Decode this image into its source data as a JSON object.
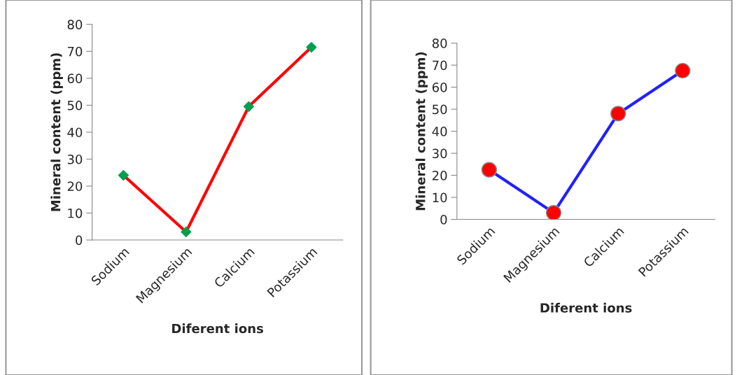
{
  "chart_data": [
    {
      "type": "line",
      "xlabel": "Diferent ions",
      "ylabel": "Mineral content (ppm)",
      "categories": [
        "Sodium",
        "Magnesium",
        "Calcium",
        "Potassium"
      ],
      "series": [
        {
          "color": "#ff0000",
          "colors": [
            "#00a050",
            "#00a050",
            "#00a050",
            "#00a050"
          ],
          "values": [
            24,
            3,
            49.5,
            71.5
          ]
        }
      ],
      "ylim": [
        0,
        80
      ],
      "yticks": [
        0,
        10,
        20,
        30,
        40,
        50,
        60,
        70,
        80
      ],
      "marker": "diamond",
      "line_style": "solid",
      "grid": false,
      "legend": false
    },
    {
      "type": "line",
      "xlabel": "Diferent ions",
      "ylabel": "Mineral content (ppm)",
      "categories": [
        "Sodium",
        "Magnesium",
        "Calcium",
        "Potassium"
      ],
      "series": [
        {
          "color": "#2020ff",
          "colors": [
            "#ff0000",
            "#ff0000",
            "#ff0000",
            "#ff0000"
          ],
          "values": [
            22.5,
            3,
            48,
            67.5
          ]
        }
      ],
      "ylim": [
        0,
        80
      ],
      "yticks": [
        0,
        10,
        20,
        30,
        40,
        50,
        60,
        70,
        80
      ],
      "marker": "circle",
      "line_style": "solid",
      "grid": false,
      "legend": false
    }
  ]
}
